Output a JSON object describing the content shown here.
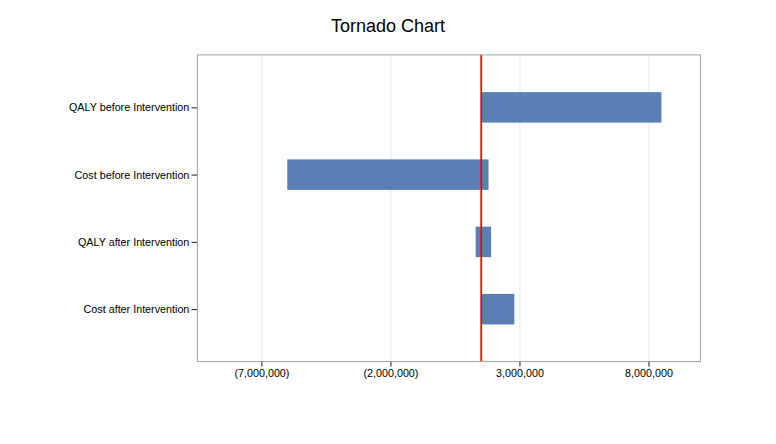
{
  "chart_data": {
    "type": "bar",
    "orientation": "horizontal",
    "title": "Tornado Chart",
    "categories": [
      "QALY before Intervention",
      "Cost before Intervention",
      "QALY after Intervention",
      "Cost after Intervention"
    ],
    "values": [
      [
        1500000,
        8500000
      ],
      [
        -6000000,
        1800000
      ],
      [
        1300000,
        1900000
      ],
      [
        1500000,
        2800000
      ]
    ],
    "color": "#5b7fb5",
    "reference_line": {
      "value": 1500000,
      "color": "red"
    },
    "xlim": [
      -9500000,
      10000000
    ],
    "xticks": [
      {
        "value": -7000000,
        "label": "(7,000,000)"
      },
      {
        "value": -2000000,
        "label": "(2,000,000)"
      },
      {
        "value": 3000000,
        "label": "3,000,000"
      },
      {
        "value": 8000000,
        "label": "8,000,000"
      }
    ],
    "grid": true
  }
}
